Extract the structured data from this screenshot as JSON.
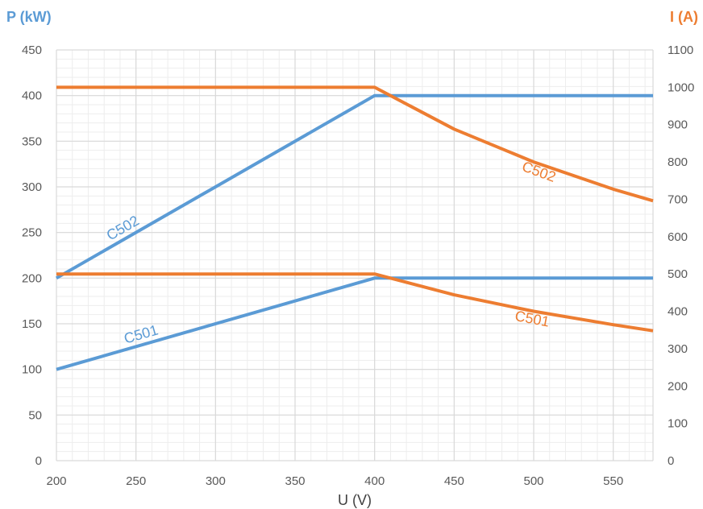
{
  "chart_data": {
    "type": "line",
    "xlabel": "U (V)",
    "ylabel_left": "P (kW)",
    "ylabel_right": "I (A)",
    "xlim": [
      200,
      575
    ],
    "ylim_left": [
      0,
      450
    ],
    "ylim_right": [
      0,
      1100
    ],
    "x_ticks": [
      200,
      250,
      300,
      350,
      400,
      450,
      500,
      550
    ],
    "y_ticks_left": [
      0,
      50,
      100,
      150,
      200,
      250,
      300,
      350,
      400,
      450
    ],
    "y_ticks_right": [
      0,
      100,
      200,
      300,
      400,
      500,
      600,
      700,
      800,
      900,
      1000,
      1100
    ],
    "grid": true,
    "colors": {
      "power": "#5B9BD5",
      "current": "#ED7D31",
      "grid": "#D9D9D9"
    },
    "series": [
      {
        "name": "C502",
        "quantity": "power",
        "axis": "left",
        "x": [
          200,
          400,
          575
        ],
        "y": [
          200,
          400,
          400
        ]
      },
      {
        "name": "C501",
        "quantity": "power",
        "axis": "left",
        "x": [
          200,
          400,
          575
        ],
        "y": [
          100,
          200,
          200
        ]
      },
      {
        "name": "C502",
        "quantity": "current",
        "axis": "right",
        "x": [
          200,
          400,
          450,
          500,
          550,
          575
        ],
        "y": [
          1000,
          1000,
          888,
          800,
          727,
          696
        ]
      },
      {
        "name": "C501",
        "quantity": "current",
        "axis": "right",
        "x": [
          200,
          400,
          450,
          500,
          550,
          575
        ],
        "y": [
          500,
          500,
          444,
          400,
          364,
          348
        ]
      }
    ]
  }
}
